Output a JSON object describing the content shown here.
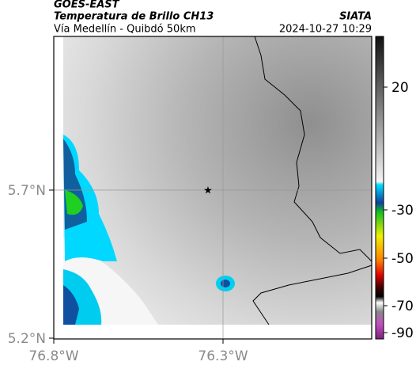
{
  "header": {
    "satellite": "GOES-EAST",
    "product": "Temperatura de Brillo CH13",
    "route": "Vía Medellín - Quibdó 50km",
    "agency": "SIATA",
    "timestamp": "2024-10-27 10:29"
  },
  "map": {
    "lat_ticks": [
      "5.7°N",
      "5.2°N"
    ],
    "lon_ticks": [
      "76.8°W",
      "76.3°W"
    ]
  },
  "colorbar": {
    "ticks": [
      "20",
      "-30",
      "-50",
      "-70",
      "-90"
    ]
  }
}
